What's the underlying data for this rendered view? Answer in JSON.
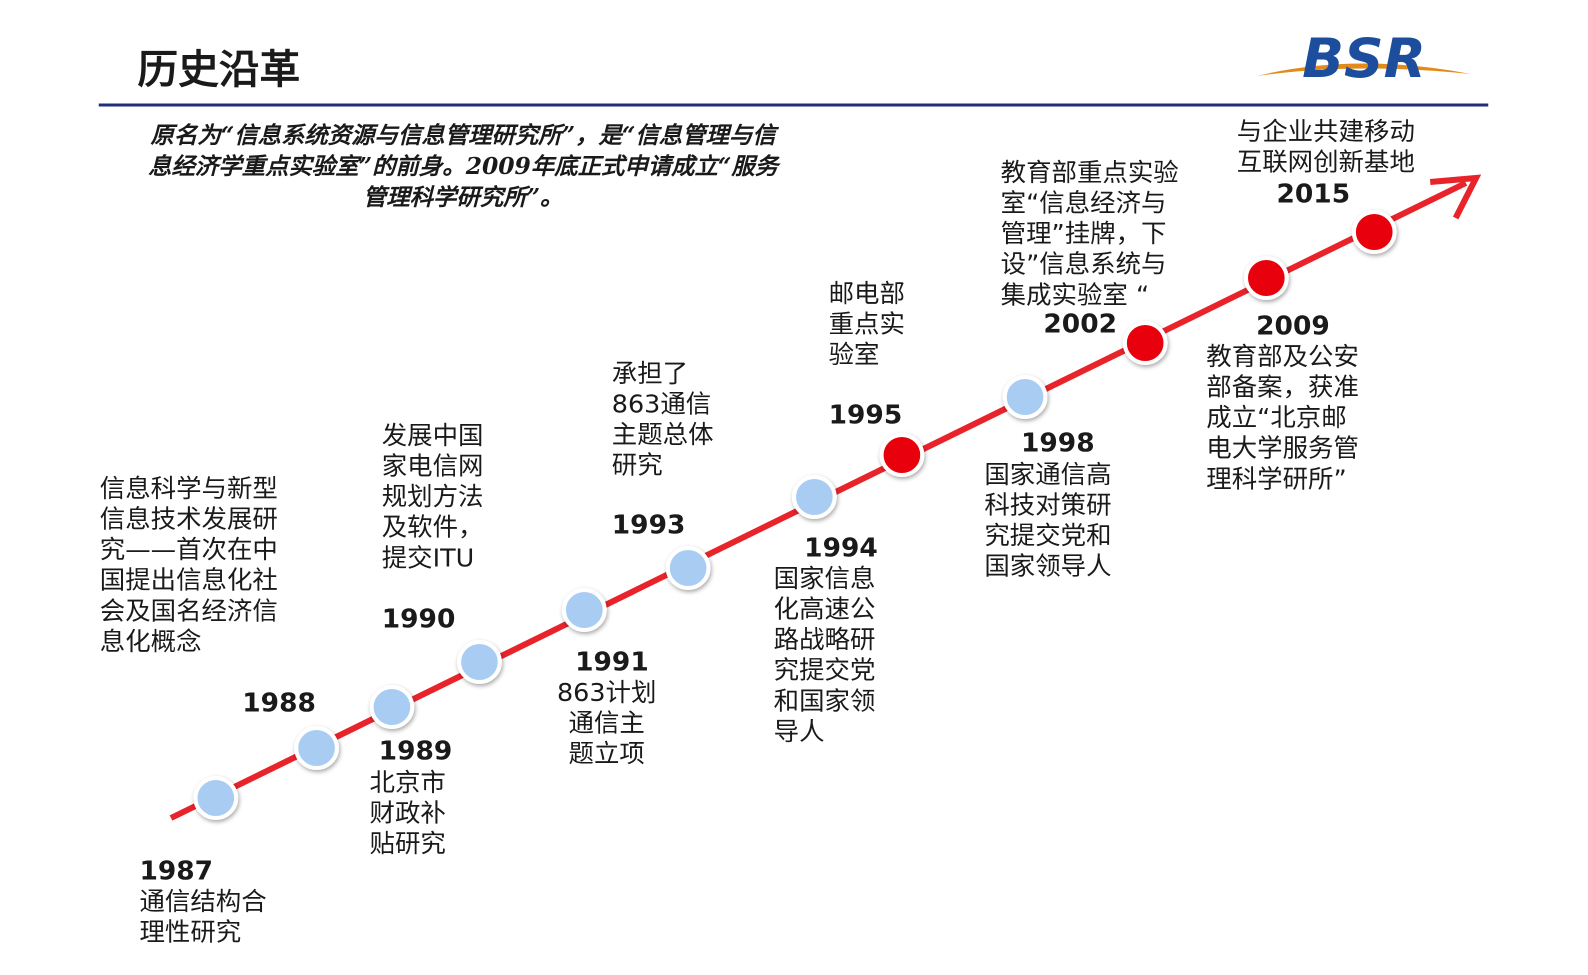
{
  "header": {
    "title": "历史沿革",
    "logo": "BSR"
  },
  "intro": [
    "原名为“信息系统资源与信息管理研究所”，是“信息管理与信",
    "息经济学重点实验室”的前身。2009年底正式申请成立“服务",
    "管理科学研究所”。"
  ],
  "events": [
    {
      "year": "1987",
      "lines": [
        "通信结构合",
        "理性研究"
      ],
      "color": "#a9cdf2"
    },
    {
      "year": "1988",
      "lines": [
        "信息科学与新型",
        "信息技术发展研",
        "究——首次在中",
        "国提出信息化社",
        "会及国名经济信",
        "息化概念"
      ],
      "color": "#a9cdf2"
    },
    {
      "year": "1989",
      "lines": [
        "北京市",
        "财政补",
        "贴研究"
      ],
      "color": "#a9cdf2"
    },
    {
      "year": "1990",
      "lines": [
        "发展中国",
        "家电信网",
        "规划方法",
        "及软件，",
        "提交ITU"
      ],
      "color": "#a9cdf2"
    },
    {
      "year": "1991",
      "lines": [
        "863计划",
        "通信主",
        "题立项"
      ],
      "color": "#a9cdf2"
    },
    {
      "year": "1993",
      "lines": [
        "承担了",
        "863通信",
        "主题总体",
        "研究"
      ],
      "color": "#a9cdf2"
    },
    {
      "year": "1994",
      "lines": [
        "国家信息",
        "化高速公",
        "路战略研",
        "究提交党",
        "和国家领",
        "导人"
      ],
      "color": "#a9cdf2"
    },
    {
      "year": "1995",
      "lines": [
        "邮电部",
        "重点实",
        "验室"
      ],
      "color": "#e8000b"
    },
    {
      "year": "1998",
      "lines": [
        "国家通信高",
        "科技对策研",
        "究提交党和",
        "国家领导人"
      ],
      "color": "#a9cdf2"
    },
    {
      "year": "2002",
      "lines": [
        "教育部重点实验",
        "室“信息经济与",
        "管理”挂牌，下",
        "设”信息系统与",
        "集成实验室 “"
      ],
      "color": "#e8000b"
    },
    {
      "year": "2009",
      "lines": [
        "教育部及公安",
        "部备案，获准",
        "成立“北京邮",
        "电大学服务管",
        "理科学研所”"
      ],
      "color": "#e8000b"
    },
    {
      "year": "2015",
      "lines": [
        "与企业共建移动",
        "互联网创新基地"
      ],
      "color": "#e8000b"
    }
  ]
}
